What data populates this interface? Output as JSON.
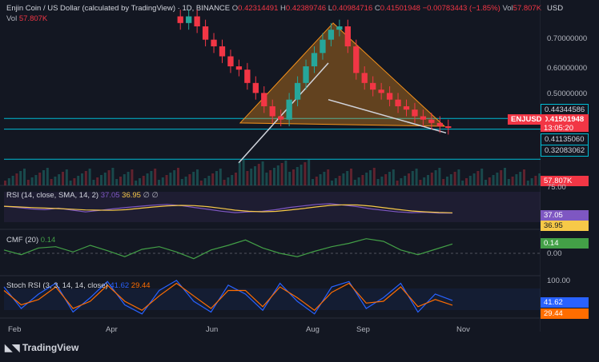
{
  "header": {
    "symbol_title": "Enjin Coin / US Dollar (calculated by TradingView) · 1D, BINANCE",
    "open_label": "O",
    "open": "0.42314491",
    "high_label": "H",
    "high": "0.42389746",
    "low_label": "L",
    "low": "0.40984716",
    "close_label": "C",
    "close": "0.41501948",
    "change": "−0.00783443 (−1.85%)",
    "vol_label": "Vol",
    "vol_value": "57.807K",
    "currency": "USD",
    "vol_row_label": "Vol",
    "vol_row_value": "57.807K"
  },
  "price_axis": {
    "ticks": [
      "0.70000000",
      "0.60000000",
      "0.50000000"
    ],
    "badges": {
      "resistance": "0.44344586",
      "last": "0.41501948",
      "countdown": "13:05:20",
      "support1": "0.41135060",
      "support2": "0.32083062",
      "volume": "57.807K"
    },
    "symbol_tag": "ENJUSD"
  },
  "rsi": {
    "legend": "RSI (14, close, SMA, 14, 2)",
    "v1": "37.05",
    "v2": "36.95",
    "v3": "∅ ∅",
    "axis_top": "75.00",
    "badge1": "37.05",
    "badge2": "36.95"
  },
  "cmf": {
    "legend": "CMF (20)",
    "value": "0.14",
    "badge": "0.14",
    "zero": "0.00"
  },
  "stoch": {
    "legend": "Stoch RSI (3, 3, 14, 14, close)",
    "k": "41.62",
    "d": "29.44",
    "axis_top": "100.00",
    "badge_k": "41.62",
    "badge_d": "29.44"
  },
  "time_axis": [
    "Feb",
    "Apr",
    "Jun",
    "Aug",
    "Sep",
    "Nov"
  ],
  "branding": "TradingView",
  "colors": {
    "background": "#131722",
    "up": "#26a69a",
    "down": "#f23645",
    "triangle": "#f7931a",
    "rsi": "#7e57c2",
    "rsi_sma": "#f7c948",
    "cmf": "#43a047",
    "stoch_k": "#2962ff",
    "stoch_d": "#ff6d00",
    "level_line": "#00bcd4"
  },
  "chart_data": {
    "type": "candlestick",
    "x_ticks": [
      "Feb",
      "Apr",
      "Jun",
      "Aug",
      "Sep",
      "Nov"
    ],
    "price_ticks": [
      0.7,
      0.6,
      0.5
    ],
    "price_range": [
      0.3,
      0.78
    ],
    "close_series": [
      0.73,
      0.75,
      0.72,
      0.68,
      0.66,
      0.63,
      0.6,
      0.59,
      0.55,
      0.52,
      0.48,
      0.45,
      0.44,
      0.5,
      0.55,
      0.6,
      0.64,
      0.68,
      0.71,
      0.72,
      0.66,
      0.58,
      0.55,
      0.53,
      0.52,
      0.5,
      0.48,
      0.47,
      0.45,
      0.44,
      0.43,
      0.42,
      0.415
    ],
    "levels": [
      0.44344586,
      0.4113506,
      0.32083062
    ],
    "rsi_values": [
      55,
      52,
      48,
      46,
      50,
      45,
      40,
      44,
      48,
      52,
      55,
      58,
      60,
      57,
      52,
      47,
      42,
      38,
      40,
      42,
      46,
      52,
      56,
      60,
      62,
      58,
      54,
      48,
      44,
      40,
      38,
      39,
      37,
      37
    ],
    "cmf_values": [
      0.05,
      -0.02,
      0.08,
      0.1,
      0.02,
      0.12,
      0.04,
      -0.05,
      0.06,
      0.1,
      0.02,
      -0.08,
      0.05,
      0.12,
      0.2,
      0.08,
      0.0,
      -0.05,
      0.03,
      0.1,
      0.15,
      0.22,
      0.18,
      0.05,
      -0.02,
      0.06,
      0.14
    ],
    "stoch_k_values": [
      80,
      20,
      60,
      90,
      10,
      50,
      95,
      30,
      5,
      70,
      98,
      40,
      10,
      85,
      60,
      15,
      90,
      40,
      5,
      80,
      95,
      20,
      50,
      90,
      10,
      60,
      42
    ],
    "stoch_d_values": [
      70,
      30,
      45,
      80,
      20,
      40,
      85,
      40,
      15,
      55,
      90,
      55,
      20,
      70,
      70,
      25,
      80,
      50,
      15,
      65,
      90,
      35,
      40,
      80,
      25,
      45,
      29
    ]
  }
}
